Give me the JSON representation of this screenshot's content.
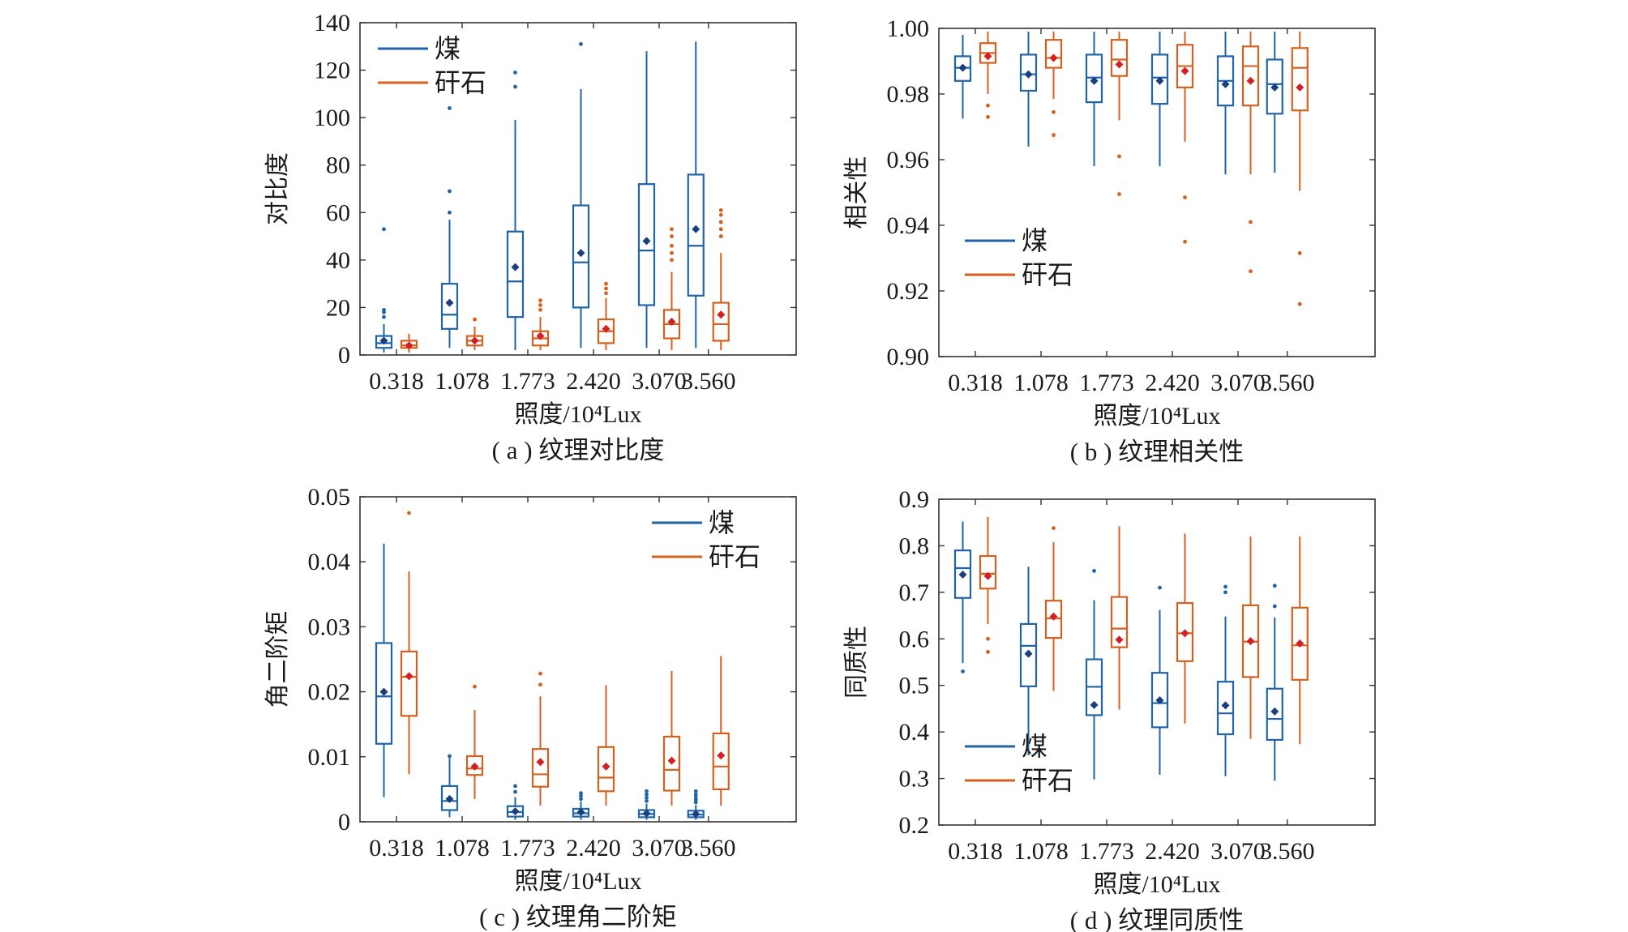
{
  "figure": {
    "colors": {
      "coal": "#1f63a8",
      "gangue": "#d4601f",
      "coal_mean": "#1a3f80",
      "gangue_mean": "#d42020"
    }
  },
  "chart_data": [
    {
      "id": "a",
      "type": "box",
      "caption": "( a ) 纹理对比度",
      "xlabel": "照度/10⁴Lux",
      "ylabel": "对比度",
      "categories": [
        "0.318",
        "1.078",
        "1.773",
        "2.420",
        "3.070",
        "3.560"
      ],
      "ylim": [
        0,
        140
      ],
      "yticks": [
        0,
        20,
        40,
        60,
        80,
        100,
        120,
        140
      ],
      "ytick_labels": [
        "0",
        "20",
        "40",
        "60",
        "80",
        "100",
        "120",
        "140"
      ],
      "legend": {
        "position": "top-left",
        "entries": [
          "煤",
          "矸石"
        ]
      },
      "series": [
        {
          "name": "煤",
          "boxes": [
            {
              "min": 1,
              "q1": 3,
              "median": 5,
              "q3": 8,
              "max": 13,
              "mean": 6,
              "outliers": [
                16,
                18,
                19,
                53
              ]
            },
            {
              "min": 3,
              "q1": 11,
              "median": 17,
              "q3": 30,
              "max": 57,
              "mean": 22,
              "outliers": [
                60,
                69,
                104
              ]
            },
            {
              "min": 2,
              "q1": 16,
              "median": 31,
              "q3": 52,
              "max": 99,
              "mean": 37,
              "outliers": [
                113,
                119
              ]
            },
            {
              "min": 3,
              "q1": 20,
              "median": 39,
              "q3": 63,
              "max": 112,
              "mean": 43,
              "outliers": [
                131
              ]
            },
            {
              "min": 3,
              "q1": 21,
              "median": 44,
              "q3": 72,
              "max": 128,
              "mean": 48,
              "outliers": []
            },
            {
              "min": 3,
              "q1": 25,
              "median": 46,
              "q3": 76,
              "max": 132,
              "mean": 53,
              "outliers": []
            }
          ]
        },
        {
          "name": "矸石",
          "boxes": [
            {
              "min": 1,
              "q1": 3,
              "median": 4,
              "q3": 6,
              "max": 9,
              "mean": 4,
              "outliers": []
            },
            {
              "min": 2,
              "q1": 4,
              "median": 6,
              "q3": 8,
              "max": 12,
              "mean": 6,
              "outliers": [
                15
              ]
            },
            {
              "min": 2,
              "q1": 4,
              "median": 7,
              "q3": 10,
              "max": 16,
              "mean": 8,
              "outliers": [
                19,
                21,
                23
              ]
            },
            {
              "min": 2,
              "q1": 5,
              "median": 10,
              "q3": 15,
              "max": 24,
              "mean": 11,
              "outliers": [
                26,
                28,
                30
              ]
            },
            {
              "min": 2,
              "q1": 7,
              "median": 13,
              "q3": 19,
              "max": 35,
              "mean": 14,
              "outliers": [
                40,
                43,
                46,
                50,
                53
              ]
            },
            {
              "min": 2,
              "q1": 6,
              "median": 13,
              "q3": 22,
              "max": 43,
              "mean": 17,
              "outliers": [
                50,
                53,
                56,
                59,
                61
              ]
            }
          ]
        }
      ]
    },
    {
      "id": "b",
      "type": "box",
      "caption": "( b ) 纹理相关性",
      "xlabel": "照度/10⁴Lux",
      "ylabel": "相关性",
      "categories": [
        "0.318",
        "1.078",
        "1.773",
        "2.420",
        "3.070",
        "3.560"
      ],
      "ylim": [
        0.9,
        1.0
      ],
      "yticks": [
        0.9,
        0.92,
        0.94,
        0.96,
        0.98,
        1.0
      ],
      "ytick_labels": [
        "0.90",
        "0.92",
        "0.94",
        "0.96",
        "0.98",
        "1.00"
      ],
      "legend": {
        "position": "middle-left",
        "entries": [
          "煤",
          "矸石"
        ]
      },
      "series": [
        {
          "name": "煤",
          "boxes": [
            {
              "min": 0.9725,
              "q1": 0.984,
              "median": 0.988,
              "q3": 0.9915,
              "max": 0.998,
              "mean": 0.988,
              "outliers": []
            },
            {
              "min": 0.964,
              "q1": 0.981,
              "median": 0.986,
              "q3": 0.992,
              "max": 0.999,
              "mean": 0.986,
              "outliers": []
            },
            {
              "min": 0.958,
              "q1": 0.9775,
              "median": 0.985,
              "q3": 0.992,
              "max": 0.999,
              "mean": 0.984,
              "outliers": []
            },
            {
              "min": 0.958,
              "q1": 0.977,
              "median": 0.985,
              "q3": 0.992,
              "max": 0.999,
              "mean": 0.984,
              "outliers": []
            },
            {
              "min": 0.9555,
              "q1": 0.9765,
              "median": 0.984,
              "q3": 0.9915,
              "max": 0.999,
              "mean": 0.983,
              "outliers": []
            },
            {
              "min": 0.956,
              "q1": 0.974,
              "median": 0.983,
              "q3": 0.9905,
              "max": 0.999,
              "mean": 0.982,
              "outliers": []
            }
          ]
        },
        {
          "name": "矸石",
          "boxes": [
            {
              "min": 0.98,
              "q1": 0.9895,
              "median": 0.9925,
              "q3": 0.9955,
              "max": 0.999,
              "mean": 0.9915,
              "outliers": [
                0.9765,
                0.973
              ]
            },
            {
              "min": 0.9785,
              "q1": 0.988,
              "median": 0.991,
              "q3": 0.9965,
              "max": 0.999,
              "mean": 0.991,
              "outliers": [
                0.9745,
                0.9675
              ]
            },
            {
              "min": 0.972,
              "q1": 0.9855,
              "median": 0.9905,
              "q3": 0.9965,
              "max": 0.999,
              "mean": 0.989,
              "outliers": [
                0.961,
                0.9495
              ]
            },
            {
              "min": 0.9655,
              "q1": 0.982,
              "median": 0.9885,
              "q3": 0.995,
              "max": 0.999,
              "mean": 0.987,
              "outliers": [
                0.9485,
                0.935
              ]
            },
            {
              "min": 0.9555,
              "q1": 0.9765,
              "median": 0.9885,
              "q3": 0.9945,
              "max": 0.999,
              "mean": 0.984,
              "outliers": [
                0.941,
                0.926
              ]
            },
            {
              "min": 0.9505,
              "q1": 0.975,
              "median": 0.988,
              "q3": 0.994,
              "max": 0.999,
              "mean": 0.982,
              "outliers": [
                0.9315,
                0.916
              ]
            }
          ]
        }
      ]
    },
    {
      "id": "c",
      "type": "box",
      "caption": "( c ) 纹理角二阶矩",
      "xlabel": "照度/10⁴Lux",
      "ylabel": "角二阶矩",
      "categories": [
        "0.318",
        "1.078",
        "1.773",
        "2.420",
        "3.070",
        "3.560"
      ],
      "ylim": [
        0,
        0.05
      ],
      "yticks": [
        0,
        0.01,
        0.02,
        0.03,
        0.04,
        0.05
      ],
      "ytick_labels": [
        "0",
        "0.01",
        "0.02",
        "0.03",
        "0.04",
        "0.05"
      ],
      "legend": {
        "position": "top-right",
        "entries": [
          "煤",
          "矸石"
        ]
      },
      "series": [
        {
          "name": "煤",
          "boxes": [
            {
              "min": 0.0038,
              "q1": 0.012,
              "median": 0.0193,
              "q3": 0.0275,
              "max": 0.0428,
              "mean": 0.02,
              "outliers": []
            },
            {
              "min": 0.0007,
              "q1": 0.0018,
              "median": 0.0032,
              "q3": 0.0055,
              "max": 0.0098,
              "mean": 0.0035,
              "outliers": [
                0.0101
              ]
            },
            {
              "min": 0.0003,
              "q1": 0.0008,
              "median": 0.0015,
              "q3": 0.0024,
              "max": 0.0038,
              "mean": 0.0016,
              "outliers": [
                0.0046,
                0.0055
              ]
            },
            {
              "min": 0.0003,
              "q1": 0.0008,
              "median": 0.0013,
              "q3": 0.002,
              "max": 0.0031,
              "mean": 0.0015,
              "outliers": [
                0.0035,
                0.004,
                0.0044
              ]
            },
            {
              "min": 0.0003,
              "q1": 0.0007,
              "median": 0.0012,
              "q3": 0.0018,
              "max": 0.0028,
              "mean": 0.0013,
              "outliers": [
                0.0032,
                0.0037,
                0.0042,
                0.0047
              ]
            },
            {
              "min": 0.0003,
              "q1": 0.0007,
              "median": 0.0011,
              "q3": 0.0017,
              "max": 0.0026,
              "mean": 0.0012,
              "outliers": [
                0.003,
                0.0034,
                0.0038,
                0.0042,
                0.0047
              ]
            }
          ]
        },
        {
          "name": "矸石",
          "boxes": [
            {
              "min": 0.0073,
              "q1": 0.0163,
              "median": 0.0223,
              "q3": 0.0262,
              "max": 0.0385,
              "mean": 0.0224,
              "outliers": [
                0.0475
              ]
            },
            {
              "min": 0.0035,
              "q1": 0.0072,
              "median": 0.0082,
              "q3": 0.0101,
              "max": 0.0172,
              "mean": 0.0085,
              "outliers": [
                0.0208
              ]
            },
            {
              "min": 0.0025,
              "q1": 0.0054,
              "median": 0.0073,
              "q3": 0.0112,
              "max": 0.0193,
              "mean": 0.0092,
              "outliers": [
                0.0211,
                0.0228
              ]
            },
            {
              "min": 0.0025,
              "q1": 0.0047,
              "median": 0.0068,
              "q3": 0.0115,
              "max": 0.021,
              "mean": 0.0085,
              "outliers": []
            },
            {
              "min": 0.0025,
              "q1": 0.0048,
              "median": 0.008,
              "q3": 0.0131,
              "max": 0.0232,
              "mean": 0.0094,
              "outliers": []
            },
            {
              "min": 0.0025,
              "q1": 0.005,
              "median": 0.0085,
              "q3": 0.0136,
              "max": 0.0255,
              "mean": 0.0102,
              "outliers": []
            }
          ]
        }
      ]
    },
    {
      "id": "d",
      "type": "box",
      "caption": "( d ) 纹理同质性",
      "xlabel": "照度/10⁴Lux",
      "ylabel": "同质性",
      "categories": [
        "0.318",
        "1.078",
        "1.773",
        "2.420",
        "3.070",
        "3.560"
      ],
      "ylim": [
        0.2,
        0.9
      ],
      "yticks": [
        0.2,
        0.3,
        0.4,
        0.5,
        0.6,
        0.7,
        0.8,
        0.9
      ],
      "ytick_labels": [
        "0.2",
        "0.3",
        "0.4",
        "0.5",
        "0.6",
        "0.7",
        "0.8",
        "0.9"
      ],
      "legend": {
        "position": "bottom-left",
        "entries": [
          "煤",
          "矸石"
        ]
      },
      "series": [
        {
          "name": "煤",
          "boxes": [
            {
              "min": 0.548,
              "q1": 0.688,
              "median": 0.752,
              "q3": 0.79,
              "max": 0.852,
              "mean": 0.738,
              "outliers": [
                0.53
              ]
            },
            {
              "min": 0.35,
              "q1": 0.498,
              "median": 0.585,
              "q3": 0.632,
              "max": 0.755,
              "mean": 0.568,
              "outliers": []
            },
            {
              "min": 0.298,
              "q1": 0.436,
              "median": 0.497,
              "q3": 0.556,
              "max": 0.683,
              "mean": 0.458,
              "outliers": [
                0.746
              ]
            },
            {
              "min": 0.308,
              "q1": 0.41,
              "median": 0.462,
              "q3": 0.527,
              "max": 0.662,
              "mean": 0.468,
              "outliers": [
                0.71
              ]
            },
            {
              "min": 0.305,
              "q1": 0.395,
              "median": 0.44,
              "q3": 0.508,
              "max": 0.648,
              "mean": 0.457,
              "outliers": [
                0.7,
                0.712
              ]
            },
            {
              "min": 0.295,
              "q1": 0.383,
              "median": 0.428,
              "q3": 0.493,
              "max": 0.646,
              "mean": 0.444,
              "outliers": [
                0.67,
                0.714
              ]
            }
          ]
        },
        {
          "name": "矸石",
          "boxes": [
            {
              "min": 0.632,
              "q1": 0.708,
              "median": 0.74,
              "q3": 0.778,
              "max": 0.862,
              "mean": 0.735,
              "outliers": [
                0.6,
                0.572
              ]
            },
            {
              "min": 0.488,
              "q1": 0.602,
              "median": 0.644,
              "q3": 0.682,
              "max": 0.808,
              "mean": 0.648,
              "outliers": [
                0.838
              ]
            },
            {
              "min": 0.448,
              "q1": 0.582,
              "median": 0.622,
              "q3": 0.69,
              "max": 0.842,
              "mean": 0.598,
              "outliers": []
            },
            {
              "min": 0.418,
              "q1": 0.552,
              "median": 0.612,
              "q3": 0.677,
              "max": 0.826,
              "mean": 0.612,
              "outliers": []
            },
            {
              "min": 0.385,
              "q1": 0.518,
              "median": 0.594,
              "q3": 0.672,
              "max": 0.82,
              "mean": 0.595,
              "outliers": []
            },
            {
              "min": 0.374,
              "q1": 0.512,
              "median": 0.586,
              "q3": 0.667,
              "max": 0.82,
              "mean": 0.59,
              "outliers": []
            }
          ]
        }
      ]
    }
  ]
}
